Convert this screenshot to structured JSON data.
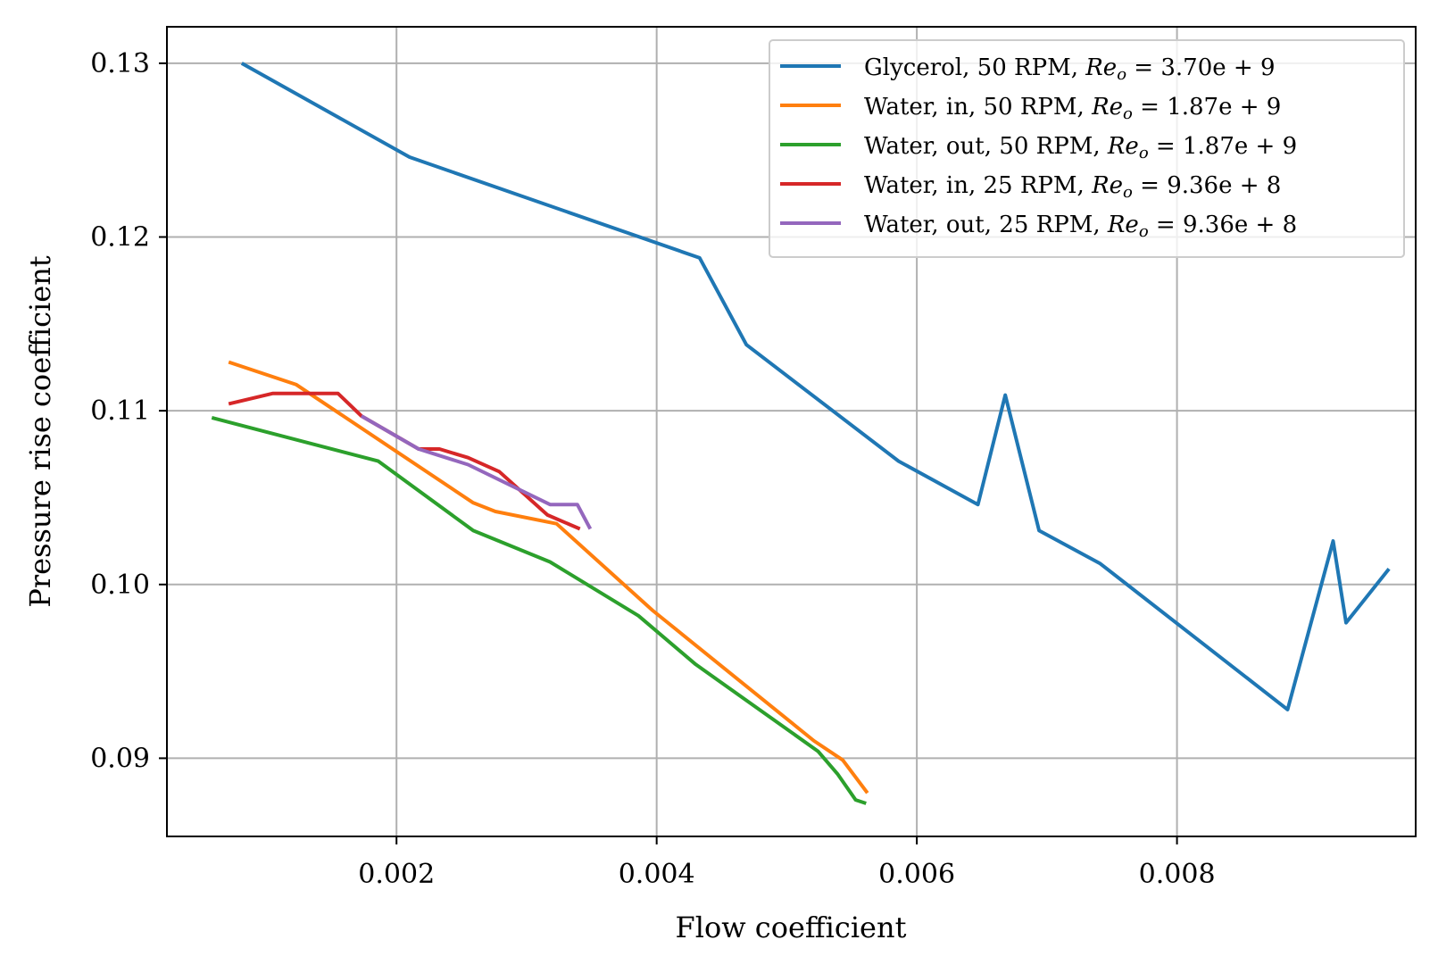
{
  "chart_data": {
    "type": "line",
    "xlabel": "Flow coefficient",
    "ylabel": "Pressure rise coefficient",
    "xlim": [
      0.000235,
      0.009835
    ],
    "ylim": [
      0.0855,
      0.1321
    ],
    "xticks": [
      0.002,
      0.004,
      0.006,
      0.008
    ],
    "xtick_labels": [
      "0.002",
      "0.004",
      "0.006",
      "0.008"
    ],
    "yticks": [
      0.09,
      0.1,
      0.11,
      0.12,
      0.13
    ],
    "ytick_labels": [
      "0.09",
      "0.10",
      "0.11",
      "0.12",
      "0.13"
    ],
    "grid": true,
    "legend_position": "top-right",
    "series": [
      {
        "name": "Glycerol, 50 RPM, Re_o = 3.70e+9",
        "legend_label": "Glycerol, 50 RPM, ",
        "legend_math": "3.70e + 9",
        "color": "#1f77b4",
        "x": [
          0.00081,
          0.0021,
          0.00433,
          0.00469,
          0.00586,
          0.00647,
          0.00668,
          0.00694,
          0.00741,
          0.00885,
          0.0092,
          0.0093,
          0.00963
        ],
        "y": [
          0.13,
          0.1246,
          0.1188,
          0.1138,
          0.1071,
          0.1046,
          0.1109,
          0.1031,
          0.1012,
          0.0928,
          0.1025,
          0.0978,
          0.1009
        ]
      },
      {
        "name": "Water, in, 50 RPM, Re_o = 1.87e+9",
        "legend_label": "Water, in, 50 RPM, ",
        "legend_math": "1.87e + 9",
        "color": "#ff7f0e",
        "x": [
          0.00071,
          0.00123,
          0.00259,
          0.00276,
          0.00323,
          0.00397,
          0.00521,
          0.00543,
          0.00562
        ],
        "y": [
          0.1128,
          0.1115,
          0.1047,
          0.1042,
          0.1035,
          0.0985,
          0.091,
          0.0899,
          0.088
        ]
      },
      {
        "name": "Water, out, 50 RPM, Re_o = 1.87e+9",
        "legend_label": "Water, out, 50 RPM, ",
        "legend_math": "1.87e + 9",
        "color": "#2ca02c",
        "x": [
          0.00058,
          0.00186,
          0.00259,
          0.00318,
          0.00386,
          0.0043,
          0.00524,
          0.00539,
          0.00553,
          0.00561
        ],
        "y": [
          0.1096,
          0.1071,
          0.1031,
          0.1013,
          0.0982,
          0.0954,
          0.0904,
          0.0891,
          0.0876,
          0.0874
        ]
      },
      {
        "name": "Water, in, 25 RPM, Re_o = 9.36e+8",
        "legend_label": "Water, in, 25 RPM, ",
        "legend_math": "9.36e + 8",
        "color": "#d62728",
        "x": [
          0.00071,
          0.00105,
          0.00155,
          0.00173,
          0.00217,
          0.00233,
          0.00255,
          0.00279,
          0.00316,
          0.00341
        ],
        "y": [
          0.1104,
          0.111,
          0.111,
          0.1097,
          0.1078,
          0.1078,
          0.1073,
          0.1065,
          0.104,
          0.1032
        ]
      },
      {
        "name": "Water, out, 25 RPM, Re_o = 9.36e+8",
        "legend_label": "Water, out, 25 RPM, ",
        "legend_math": "9.36e + 8",
        "color": "#9467bd",
        "x": [
          0.00173,
          0.00217,
          0.00255,
          0.00318,
          0.00339,
          0.00349
        ],
        "y": [
          0.1097,
          0.1078,
          0.1069,
          0.1046,
          0.1046,
          0.1032
        ]
      }
    ]
  }
}
